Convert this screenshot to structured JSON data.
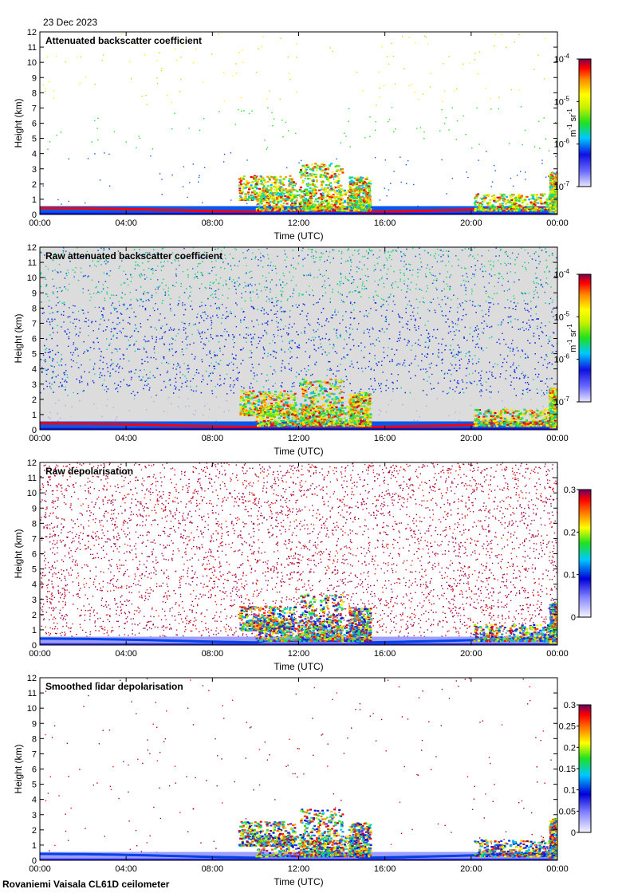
{
  "date_label": "23 Dec 2023",
  "footer": "Rovaniemi Vaisala CL61D ceilometer",
  "chart_data": [
    {
      "type": "heatmap",
      "title": "Attenuated backscatter coefficient",
      "xlabel": "Time (UTC)",
      "ylabel": "Height (km)",
      "x_ticks": [
        "00:00",
        "04:00",
        "08:00",
        "12:00",
        "16:00",
        "20:00",
        "00:00"
      ],
      "x_range_hours": [
        0,
        24
      ],
      "y_ticks": [
        0,
        1,
        2,
        3,
        4,
        5,
        6,
        7,
        8,
        9,
        10,
        11,
        12
      ],
      "ylim_km": [
        0,
        12
      ],
      "noise_density": 0.035,
      "background": "#ffffff",
      "colorbar": {
        "scale": "log",
        "range": [
          1e-07,
          0.0001
        ],
        "tick_labels": [
          [
            "10",
            "-7"
          ],
          [
            "10",
            "-6"
          ],
          [
            "10",
            "-5"
          ],
          [
            "10",
            "-4"
          ]
        ],
        "tick_values": [
          1e-07,
          1e-06,
          1e-05,
          0.0001
        ],
        "unit": [
          "m",
          "-1",
          " sr",
          "-1"
        ]
      }
    },
    {
      "type": "heatmap",
      "title": "Raw attenuated backscatter coefficient",
      "xlabel": "Time (UTC)",
      "ylabel": "Height (km)",
      "x_ticks": [
        "00:00",
        "04:00",
        "08:00",
        "12:00",
        "16:00",
        "20:00",
        "00:00"
      ],
      "x_range_hours": [
        0,
        24
      ],
      "y_ticks": [
        0,
        1,
        2,
        3,
        4,
        5,
        6,
        7,
        8,
        9,
        10,
        11,
        12
      ],
      "ylim_km": [
        0,
        12
      ],
      "noise_density": 0.6,
      "background": "#dcdcdc",
      "colorbar": {
        "scale": "log",
        "range": [
          1e-07,
          0.0001
        ],
        "tick_labels": [
          [
            "10",
            "-7"
          ],
          [
            "10",
            "-6"
          ],
          [
            "10",
            "-5"
          ],
          [
            "10",
            "-4"
          ]
        ],
        "tick_values": [
          1e-07,
          1e-06,
          1e-05,
          0.0001
        ],
        "unit": [
          "m",
          "-1",
          " sr",
          "-1"
        ]
      }
    },
    {
      "type": "heatmap",
      "title": "Raw depolarisation",
      "xlabel": "Time (UTC)",
      "ylabel": "Height (km)",
      "x_ticks": [
        "00:00",
        "04:00",
        "08:00",
        "12:00",
        "16:00",
        "20:00",
        "00:00"
      ],
      "x_range_hours": [
        0,
        24
      ],
      "y_ticks": [
        0,
        1,
        2,
        3,
        4,
        5,
        6,
        7,
        8,
        9,
        10,
        11,
        12
      ],
      "ylim_km": [
        0,
        12
      ],
      "noise_density": 0.55,
      "background": "#ffffff",
      "colorbar": {
        "scale": "linear",
        "range": [
          0,
          0.3
        ],
        "tick_labels": [
          "0",
          "0.1",
          "0.2",
          "0.3"
        ],
        "tick_values": [
          0,
          0.1,
          0.2,
          0.3
        ],
        "unit": []
      }
    },
    {
      "type": "heatmap",
      "title": "Smoothed lidar depolarisation",
      "xlabel": "Time (UTC)",
      "ylabel": "Height (km)",
      "x_ticks": [
        "00:00",
        "04:00",
        "08:00",
        "12:00",
        "16:00",
        "20:00",
        "00:00"
      ],
      "x_range_hours": [
        0,
        24
      ],
      "y_ticks": [
        0,
        1,
        2,
        3,
        4,
        5,
        6,
        7,
        8,
        9,
        10,
        11,
        12
      ],
      "ylim_km": [
        0,
        12
      ],
      "noise_density": 0.025,
      "background": "#ffffff",
      "colorbar": {
        "scale": "linear",
        "range": [
          0,
          0.3
        ],
        "tick_labels": [
          "0",
          "0.05",
          "0.1",
          "0.15",
          "0.2",
          "0.25",
          "0.3"
        ],
        "tick_values": [
          0,
          0.05,
          0.1,
          0.15,
          0.2,
          0.25,
          0.3
        ],
        "unit": []
      }
    }
  ]
}
